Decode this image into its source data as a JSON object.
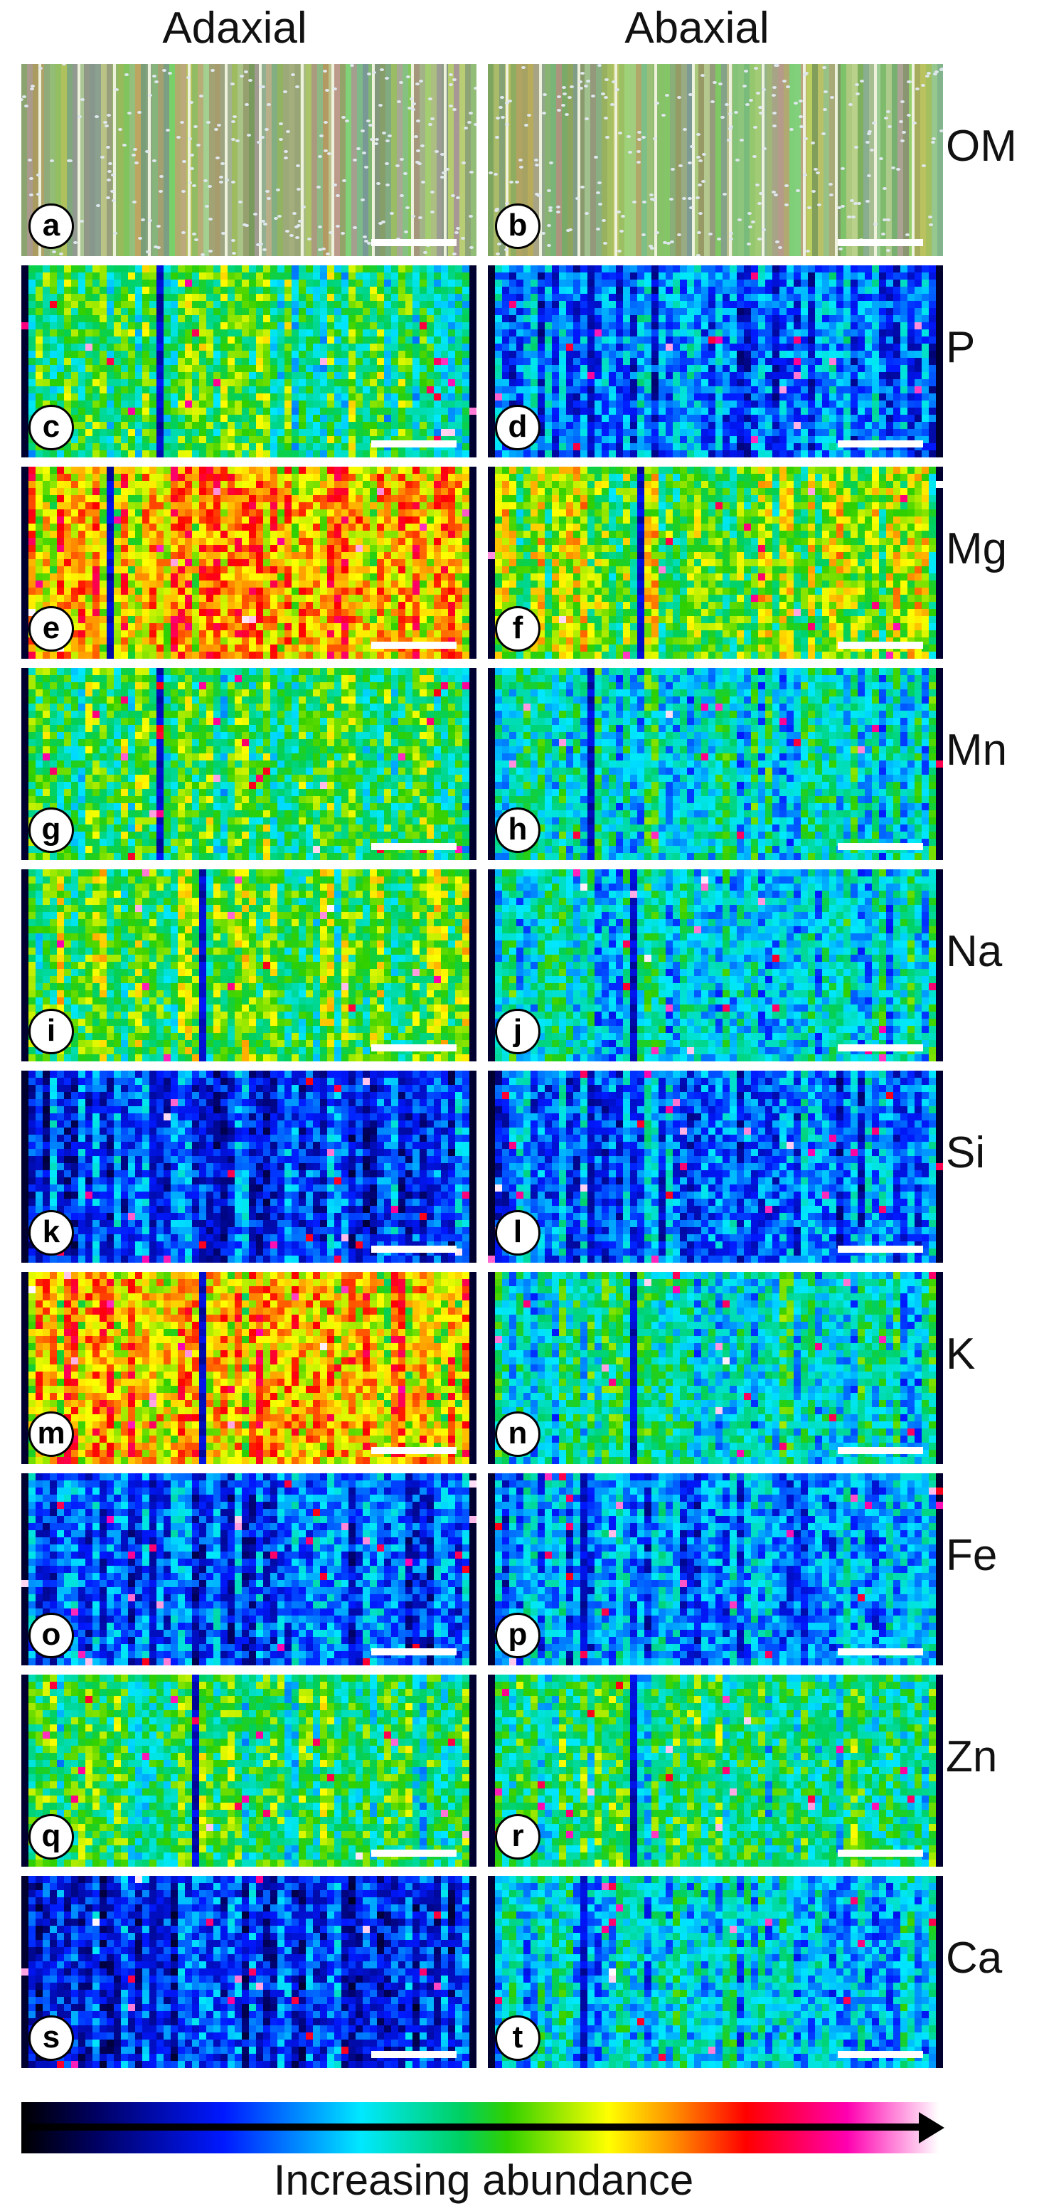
{
  "columns": {
    "adaxial": "Adaxial",
    "abaxial": "Abaxial"
  },
  "rows": [
    {
      "label": "OM",
      "left_letter": "a",
      "right_letter": "b",
      "style": "om",
      "left_level": 0.5,
      "right_level": 0.5
    },
    {
      "label": "P",
      "left_letter": "c",
      "right_letter": "d",
      "style": "map",
      "left_level": 0.48,
      "right_level": 0.28
    },
    {
      "label": "Mg",
      "left_letter": "e",
      "right_letter": "f",
      "style": "map",
      "left_level": 0.68,
      "right_level": 0.55
    },
    {
      "label": "Mn",
      "left_letter": "g",
      "right_letter": "h",
      "style": "map",
      "left_level": 0.48,
      "right_level": 0.4
    },
    {
      "label": "Na",
      "left_letter": "i",
      "right_letter": "j",
      "style": "map",
      "left_level": 0.52,
      "right_level": 0.38
    },
    {
      "label": "Si",
      "left_letter": "k",
      "right_letter": "l",
      "style": "map",
      "left_level": 0.24,
      "right_level": 0.28
    },
    {
      "label": "K",
      "left_letter": "m",
      "right_letter": "n",
      "style": "map",
      "left_level": 0.66,
      "right_level": 0.4
    },
    {
      "label": "Fe",
      "left_letter": "o",
      "right_letter": "p",
      "style": "map",
      "left_level": 0.26,
      "right_level": 0.3
    },
    {
      "label": "Zn",
      "left_letter": "q",
      "right_letter": "r",
      "style": "map",
      "left_level": 0.47,
      "right_level": 0.46
    },
    {
      "label": "Ca",
      "left_letter": "s",
      "right_letter": "t",
      "style": "map",
      "left_level": 0.22,
      "right_level": 0.36
    }
  ],
  "colorbar": {
    "caption": "Increasing abundance",
    "colors": [
      "#000000",
      "#000060",
      "#0018ff",
      "#00e8ff",
      "#00d060",
      "#ffff00",
      "#ff9000",
      "#ff0000",
      "#ff00b0",
      "#ffffff"
    ]
  }
}
